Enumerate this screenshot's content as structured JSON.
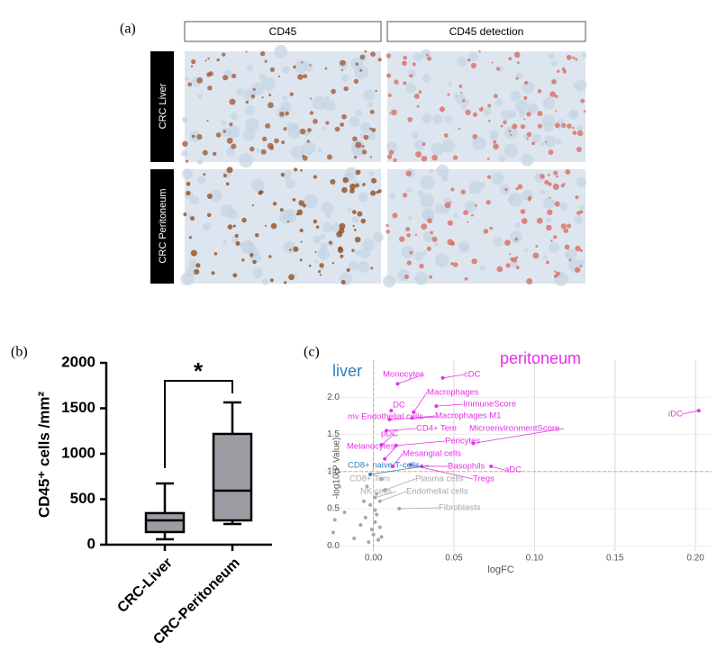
{
  "figure": {
    "panel_label": "(a)",
    "columns": [
      "CD45",
      "CD45 detection"
    ],
    "rows": [
      "CRC Liver",
      "CRC Peritoneum"
    ]
  },
  "chart_data": [
    {
      "type": "box",
      "panel_label": "(b)",
      "y_label": "CD45⁺ cells /mm²",
      "categories": [
        "CRC-Liver",
        "CRC-Peritoneum"
      ],
      "min": [
        59,
        228
      ],
      "q1": [
        139,
        267
      ],
      "median": [
        267,
        594
      ],
      "q3": [
        347,
        1218
      ],
      "max": [
        673,
        1564
      ],
      "color": "#9c9ca3",
      "ylim": [
        0,
        2000
      ],
      "yticks": [
        0,
        500,
        1000,
        1500,
        2000
      ],
      "significance": "*"
    },
    {
      "type": "scatter",
      "panel_label": "(c)",
      "x_label": "logFC",
      "y_label": "-log10(P Value)",
      "xlim": [
        -0.03,
        0.21
      ],
      "ylim": [
        -0.07,
        2.5
      ],
      "xticks": [
        {
          "value": 0,
          "label": "0.00"
        },
        {
          "value": 0.05,
          "label": "0.05"
        },
        {
          "value": 0.1,
          "label": "0.10"
        },
        {
          "value": 0.15,
          "label": "0.15"
        },
        {
          "value": 0.2,
          "label": "0.20"
        }
      ],
      "yticks": [
        {
          "value": 0,
          "label": "0.0"
        },
        {
          "value": 0.5,
          "label": "0.5"
        },
        {
          "value": 1,
          "label": "1.0"
        },
        {
          "value": 1.5,
          "label": "1.5"
        },
        {
          "value": 2,
          "label": "2.0"
        }
      ],
      "hline": 1,
      "vline": 0,
      "grid": true,
      "series": [
        {
          "name": "peritoneum",
          "color": "#e830e8",
          "x": [
            0.015,
            0.043,
            0.025,
            0.039,
            0.011,
            0.024,
            0.01,
            0.008,
            0.062,
            0.005,
            0.014,
            0.007,
            0.012,
            0.03,
            0.073,
            0.023,
            0.202
          ],
          "y": [
            2.18,
            2.26,
            1.8,
            1.88,
            1.82,
            1.72,
            1.7,
            1.55,
            1.38,
            1.36,
            1.35,
            1.17,
            1.07,
            1.07,
            1.07,
            1.09,
            1.82
          ],
          "labels": [
            "Monocytes",
            "cDC",
            "Macrophages",
            "ImmuneScore",
            "DC",
            "Macrophages M1",
            "mv Endothelial cells",
            "CD4+ Tem",
            "MicroenvironmentScore",
            "pDC",
            "Pericytes",
            "Melanocytes",
            "Mesangial cells",
            "Basophils",
            "aDC",
            "Tregs",
            "iDC"
          ]
        },
        {
          "name": "liver",
          "color": "#2f7fc1",
          "x": [
            -0.002
          ],
          "y": [
            0.96
          ],
          "labels": [
            "CD8+ naive T-cells"
          ]
        },
        {
          "color": "#a8a8a8",
          "x": [
            0.005,
            0.007,
            0.001,
            0.004,
            0.016,
            -0.025,
            -0.024,
            -0.018,
            -0.012,
            -0.008,
            -0.005,
            -0.003,
            -0.001,
            0.0,
            0.001,
            0.002,
            0.003,
            0.004,
            -0.002,
            0.001,
            0.005,
            -0.006,
            0.002,
            -0.004
          ],
          "y": [
            0.9,
            0.75,
            0.65,
            0.6,
            0.5,
            0.18,
            0.35,
            0.45,
            0.1,
            0.28,
            0.38,
            0.05,
            0.22,
            0.15,
            0.32,
            0.42,
            0.08,
            0.25,
            0.55,
            0.48,
            0.12,
            0.6,
            0.7,
            0.8
          ],
          "labels": [
            "CD8+ Tem",
            "Plasma cells",
            "NK cells",
            "Endothelial cells",
            "Fibroblasts",
            null,
            null,
            null,
            null,
            null,
            null,
            null,
            null,
            null,
            null,
            null,
            null,
            null,
            null,
            null,
            null,
            null,
            null,
            null
          ]
        }
      ]
    }
  ]
}
